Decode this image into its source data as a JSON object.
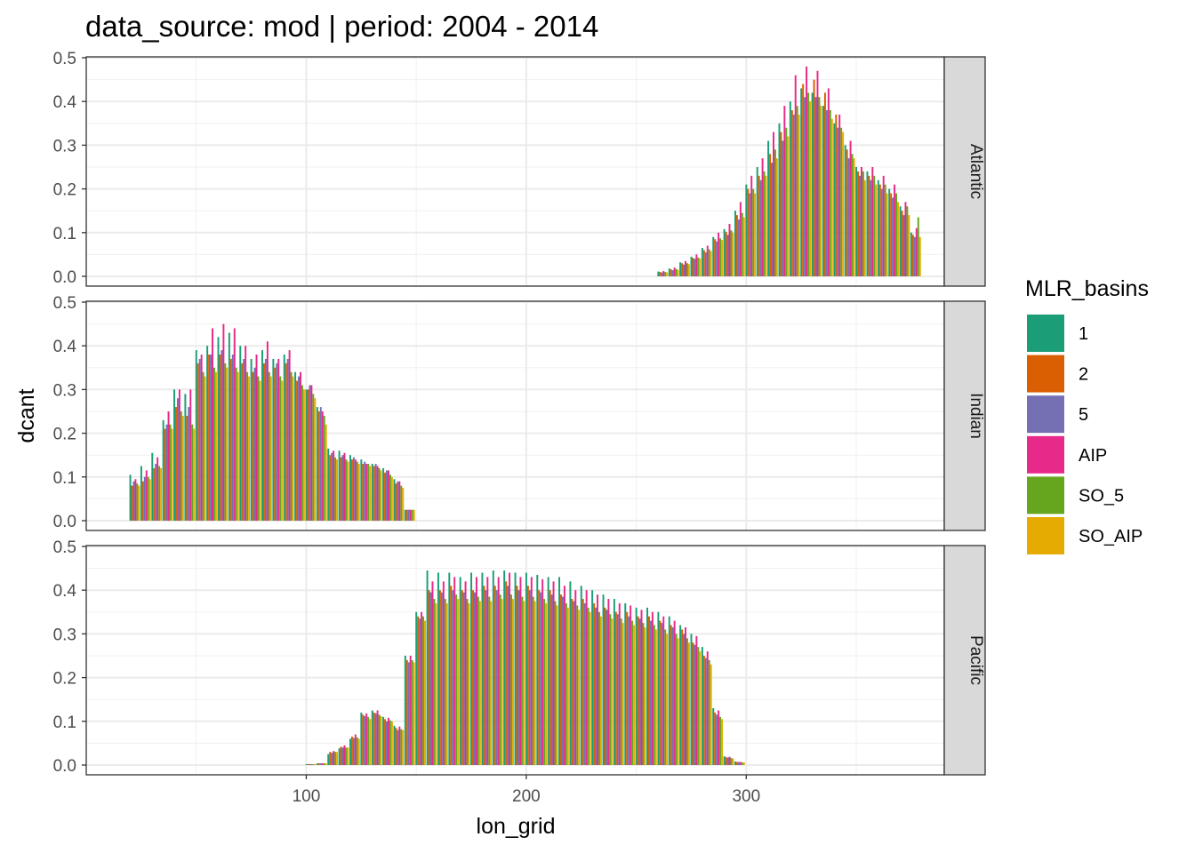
{
  "chart_data": {
    "type": "bar",
    "title": "data_source: mod | period: 2004 - 2014",
    "xlabel": "lon_grid",
    "ylabel": "dcant",
    "xlim": [
      0,
      390
    ],
    "ylim": [
      0,
      0.5
    ],
    "x_ticks": [
      {
        "value": 100,
        "label": "100"
      },
      {
        "value": 200,
        "label": "200"
      },
      {
        "value": 300,
        "label": "300"
      }
    ],
    "y_ticks": [
      {
        "value": 0.0,
        "label": "0.0"
      },
      {
        "value": 0.1,
        "label": "0.1"
      },
      {
        "value": 0.2,
        "label": "0.2"
      },
      {
        "value": 0.3,
        "label": "0.3"
      },
      {
        "value": 0.4,
        "label": "0.4"
      },
      {
        "value": 0.5,
        "label": "0.5"
      }
    ],
    "grid": true,
    "legend": {
      "title": "MLR_basins",
      "position": "right",
      "entries": [
        {
          "label": "1",
          "color": "#1b9e77"
        },
        {
          "label": "2",
          "color": "#d95f02"
        },
        {
          "label": "5",
          "color": "#7570b3"
        },
        {
          "label": "AIP",
          "color": "#e7298a"
        },
        {
          "label": "SO_5",
          "color": "#66a61e"
        },
        {
          "label": "SO_AIP",
          "color": "#e6ab02"
        }
      ]
    },
    "series_names": [
      "1",
      "2",
      "5",
      "AIP",
      "SO_5",
      "SO_AIP"
    ],
    "bar_width_lon": 5,
    "panels": [
      {
        "name": "Atlantic",
        "x": [
          262,
          267,
          272,
          277,
          282,
          287,
          292,
          297,
          302,
          307,
          312,
          317,
          322,
          327,
          332,
          337,
          342,
          347,
          352,
          357,
          362,
          367,
          372,
          377
        ],
        "values": [
          [
            0.011,
            0.018,
            0.032,
            0.045,
            0.065,
            0.09,
            0.108,
            0.15,
            0.21,
            0.25,
            0.31,
            0.35,
            0.4,
            0.43,
            0.42,
            0.39,
            0.35,
            0.3,
            0.25,
            0.24,
            0.22,
            0.2,
            0.16,
            0.1
          ],
          [
            0.01,
            0.016,
            0.03,
            0.042,
            0.06,
            0.085,
            0.102,
            0.14,
            0.2,
            0.23,
            0.28,
            0.33,
            0.38,
            0.44,
            0.45,
            0.42,
            0.37,
            0.29,
            0.24,
            0.23,
            0.21,
            0.19,
            0.15,
            0.095
          ],
          [
            0.009,
            0.014,
            0.027,
            0.04,
            0.055,
            0.08,
            0.095,
            0.13,
            0.19,
            0.22,
            0.26,
            0.31,
            0.37,
            0.41,
            0.41,
            0.38,
            0.34,
            0.27,
            0.23,
            0.22,
            0.2,
            0.18,
            0.14,
            0.09
          ],
          [
            0.012,
            0.02,
            0.035,
            0.05,
            0.07,
            0.1,
            0.12,
            0.17,
            0.23,
            0.27,
            0.33,
            0.39,
            0.46,
            0.48,
            0.47,
            0.43,
            0.37,
            0.31,
            0.25,
            0.25,
            0.23,
            0.21,
            0.17,
            0.11
          ],
          [
            0.01,
            0.017,
            0.03,
            0.043,
            0.062,
            0.087,
            0.105,
            0.145,
            0.2,
            0.24,
            0.29,
            0.34,
            0.39,
            0.42,
            0.41,
            0.38,
            0.34,
            0.28,
            0.24,
            0.23,
            0.21,
            0.19,
            0.16,
            0.135
          ],
          [
            0.009,
            0.015,
            0.028,
            0.041,
            0.058,
            0.083,
            0.1,
            0.135,
            0.19,
            0.23,
            0.27,
            0.32,
            0.37,
            0.4,
            0.39,
            0.36,
            0.33,
            0.27,
            0.22,
            0.21,
            0.19,
            0.17,
            0.14,
            0.09
          ]
        ]
      },
      {
        "name": "Indian",
        "x": [
          22,
          27,
          32,
          37,
          42,
          47,
          52,
          57,
          62,
          67,
          72,
          77,
          82,
          87,
          92,
          97,
          102,
          107,
          112,
          117,
          122,
          127,
          132,
          137,
          142,
          147
        ],
        "values": [
          [
            0.105,
            0.125,
            0.155,
            0.23,
            0.3,
            0.29,
            0.39,
            0.4,
            0.42,
            0.43,
            0.4,
            0.37,
            0.39,
            0.37,
            0.38,
            0.34,
            0.3,
            0.26,
            0.165,
            0.16,
            0.15,
            0.14,
            0.13,
            0.12,
            0.095,
            0.025
          ],
          [
            0.08,
            0.09,
            0.12,
            0.21,
            0.26,
            0.24,
            0.36,
            0.38,
            0.38,
            0.37,
            0.36,
            0.34,
            0.36,
            0.35,
            0.36,
            0.32,
            0.3,
            0.25,
            0.15,
            0.145,
            0.14,
            0.13,
            0.125,
            0.11,
            0.085,
            0.025
          ],
          [
            0.09,
            0.1,
            0.13,
            0.22,
            0.28,
            0.26,
            0.37,
            0.38,
            0.39,
            0.38,
            0.37,
            0.35,
            0.37,
            0.36,
            0.37,
            0.33,
            0.31,
            0.26,
            0.155,
            0.15,
            0.145,
            0.135,
            0.13,
            0.115,
            0.09,
            0.025
          ],
          [
            0.095,
            0.115,
            0.145,
            0.25,
            0.3,
            0.3,
            0.38,
            0.44,
            0.45,
            0.44,
            0.4,
            0.38,
            0.41,
            0.37,
            0.39,
            0.34,
            0.31,
            0.25,
            0.16,
            0.155,
            0.14,
            0.13,
            0.125,
            0.115,
            0.09,
            0.025
          ],
          [
            0.085,
            0.1,
            0.125,
            0.22,
            0.25,
            0.22,
            0.34,
            0.35,
            0.36,
            0.35,
            0.34,
            0.33,
            0.34,
            0.33,
            0.34,
            0.31,
            0.29,
            0.24,
            0.145,
            0.14,
            0.135,
            0.13,
            0.12,
            0.105,
            0.08,
            0.025
          ],
          [
            0.08,
            0.095,
            0.12,
            0.21,
            0.24,
            0.21,
            0.33,
            0.34,
            0.35,
            0.34,
            0.33,
            0.32,
            0.33,
            0.32,
            0.33,
            0.3,
            0.28,
            0.22,
            0.14,
            0.135,
            0.13,
            0.125,
            0.115,
            0.1,
            0.075,
            0.025
          ]
        ]
      },
      {
        "name": "Pacific",
        "x": [
          102,
          107,
          112,
          117,
          122,
          127,
          132,
          137,
          142,
          147,
          152,
          157,
          162,
          167,
          172,
          177,
          182,
          187,
          192,
          197,
          202,
          207,
          212,
          217,
          222,
          227,
          232,
          237,
          242,
          247,
          252,
          257,
          262,
          267,
          272,
          277,
          282,
          287,
          292,
          297
        ],
        "values": [
          [
            0.002,
            0.004,
            0.025,
            0.038,
            0.06,
            0.12,
            0.125,
            0.11,
            0.09,
            0.25,
            0.35,
            0.445,
            0.44,
            0.44,
            0.43,
            0.44,
            0.44,
            0.445,
            0.445,
            0.44,
            0.44,
            0.435,
            0.43,
            0.43,
            0.42,
            0.41,
            0.4,
            0.39,
            0.38,
            0.37,
            0.36,
            0.36,
            0.35,
            0.34,
            0.32,
            0.3,
            0.27,
            0.13,
            0.02,
            0.008
          ],
          [
            0.002,
            0.004,
            0.03,
            0.042,
            0.065,
            0.115,
            0.12,
            0.105,
            0.085,
            0.24,
            0.34,
            0.4,
            0.4,
            0.41,
            0.4,
            0.4,
            0.41,
            0.41,
            0.42,
            0.41,
            0.41,
            0.4,
            0.4,
            0.39,
            0.38,
            0.38,
            0.37,
            0.36,
            0.35,
            0.35,
            0.34,
            0.34,
            0.33,
            0.32,
            0.31,
            0.28,
            0.25,
            0.12,
            0.018,
            0.007
          ],
          [
            0.002,
            0.004,
            0.028,
            0.04,
            0.062,
            0.112,
            0.118,
            0.1,
            0.08,
            0.235,
            0.335,
            0.395,
            0.395,
            0.4,
            0.395,
            0.395,
            0.4,
            0.4,
            0.41,
            0.4,
            0.4,
            0.395,
            0.39,
            0.385,
            0.375,
            0.37,
            0.36,
            0.355,
            0.345,
            0.34,
            0.335,
            0.33,
            0.325,
            0.315,
            0.3,
            0.275,
            0.245,
            0.115,
            0.017,
            0.007
          ],
          [
            0.002,
            0.004,
            0.032,
            0.045,
            0.07,
            0.118,
            0.125,
            0.108,
            0.088,
            0.25,
            0.35,
            0.42,
            0.42,
            0.43,
            0.42,
            0.43,
            0.43,
            0.43,
            0.44,
            0.43,
            0.43,
            0.425,
            0.42,
            0.41,
            0.4,
            0.4,
            0.39,
            0.38,
            0.37,
            0.365,
            0.355,
            0.35,
            0.34,
            0.33,
            0.315,
            0.295,
            0.26,
            0.125,
            0.019,
            0.007
          ],
          [
            0.002,
            0.004,
            0.03,
            0.04,
            0.063,
            0.11,
            0.115,
            0.102,
            0.082,
            0.24,
            0.34,
            0.38,
            0.38,
            0.39,
            0.38,
            0.385,
            0.385,
            0.39,
            0.39,
            0.385,
            0.385,
            0.38,
            0.375,
            0.37,
            0.365,
            0.36,
            0.35,
            0.345,
            0.335,
            0.33,
            0.325,
            0.32,
            0.31,
            0.3,
            0.29,
            0.27,
            0.24,
            0.11,
            0.016,
            0.006
          ],
          [
            0.002,
            0.004,
            0.03,
            0.04,
            0.06,
            0.105,
            0.112,
            0.1,
            0.08,
            0.235,
            0.33,
            0.37,
            0.37,
            0.38,
            0.37,
            0.375,
            0.375,
            0.38,
            0.38,
            0.375,
            0.375,
            0.37,
            0.365,
            0.36,
            0.355,
            0.35,
            0.34,
            0.335,
            0.325,
            0.32,
            0.315,
            0.31,
            0.3,
            0.29,
            0.28,
            0.26,
            0.23,
            0.105,
            0.015,
            0.006
          ]
        ]
      }
    ]
  }
}
